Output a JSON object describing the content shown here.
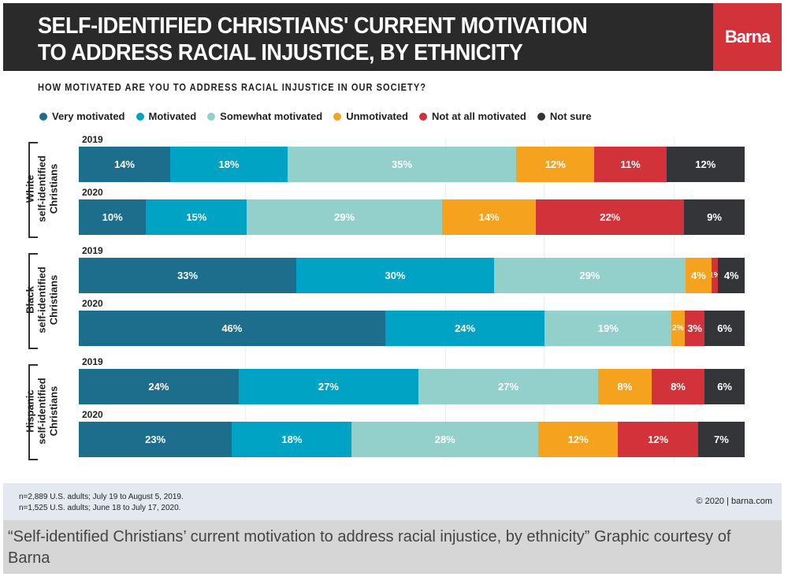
{
  "header": {
    "title_line1": "SELF-IDENTIFIED CHRISTIANS' CURRENT MOTIVATION",
    "title_line2": "TO ADDRESS RACIAL INJUSTICE, BY ETHNICITY",
    "logo": "Barna"
  },
  "chart_data": {
    "type": "bar",
    "orientation": "horizontal-stacked",
    "title": "HOW MOTIVATED ARE YOU TO ADDRESS RACIAL INJUSTICE IN OUR SOCIETY?",
    "legend_placement": "top-left",
    "grid": true,
    "series": [
      {
        "name": "Very motivated",
        "color": "#1d6e8c"
      },
      {
        "name": "Motivated",
        "color": "#00a3c4"
      },
      {
        "name": "Somewhat motivated",
        "color": "#93cfcb"
      },
      {
        "name": "Unmotivated",
        "color": "#f5a21f"
      },
      {
        "name": "Not at all motivated",
        "color": "#d2323a"
      },
      {
        "name": "Not sure",
        "color": "#333538"
      }
    ],
    "groups": [
      {
        "label": "White self-identified Christians",
        "label_line1": "White",
        "label_line2": "self-identified",
        "label_line3": "Christians",
        "rows": [
          {
            "year": "2019",
            "values": [
              14,
              18,
              35,
              12,
              11,
              12
            ]
          },
          {
            "year": "2020",
            "values": [
              10,
              15,
              29,
              14,
              22,
              9
            ]
          }
        ]
      },
      {
        "label": "Black self-identified Christians",
        "label_line1": "Black",
        "label_line2": "self-identified",
        "label_line3": "Christians",
        "rows": [
          {
            "year": "2019",
            "values": [
              33,
              30,
              29,
              4,
              1,
              4
            ]
          },
          {
            "year": "2020",
            "values": [
              46,
              24,
              19,
              2,
              3,
              6
            ]
          }
        ]
      },
      {
        "label": "Hispanic self-identified Christians",
        "label_line1": "Hispanic",
        "label_line2": "self-identified",
        "label_line3": "Christians",
        "rows": [
          {
            "year": "2019",
            "values": [
              24,
              27,
              27,
              8,
              8,
              6
            ]
          },
          {
            "year": "2020",
            "values": [
              23,
              18,
              28,
              12,
              12,
              7
            ]
          }
        ]
      }
    ],
    "value_suffix": "%"
  },
  "footer": {
    "note1": "n=2,889 U.S. adults; July 19 to August 5, 2019.",
    "note2": "n=1,525 U.S. adults; June 18 to July 17, 2020.",
    "copyright": "© 2020 | barna.com"
  },
  "caption": "“Self-identified Christians’ current motivation to address racial injustice, by ethnicity” Graphic courtesy of Barna"
}
